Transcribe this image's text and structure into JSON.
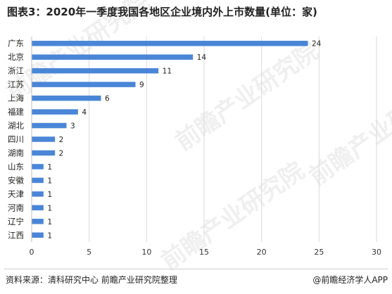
{
  "title": "图表3：2020年一季度我国各地区企业境内外上市数量(单位：家)",
  "source": "资料来源：清科研究中心 前瞻产业研究院整理",
  "brand": "@前瞻经济学人APP",
  "watermark": "前瞻产业研究院",
  "colors": {
    "bar": "#4a86d8",
    "grid": "#d9d9d9",
    "axis": "#bfbfbf"
  },
  "chart_data": {
    "type": "bar",
    "orientation": "horizontal",
    "categories": [
      "广东",
      "北京",
      "浙江",
      "江苏",
      "上海",
      "福建",
      "湖北",
      "四川",
      "湖南",
      "山东",
      "安徽",
      "天津",
      "河南",
      "辽宁",
      "江西"
    ],
    "values": [
      24,
      14,
      11,
      9,
      6,
      4,
      3,
      2,
      2,
      1,
      1,
      1,
      1,
      1,
      1
    ],
    "xlim": [
      0,
      30
    ],
    "xticks": [
      0,
      5,
      10,
      15,
      20,
      25,
      30
    ],
    "grid": "vertical",
    "data_labels": true
  }
}
